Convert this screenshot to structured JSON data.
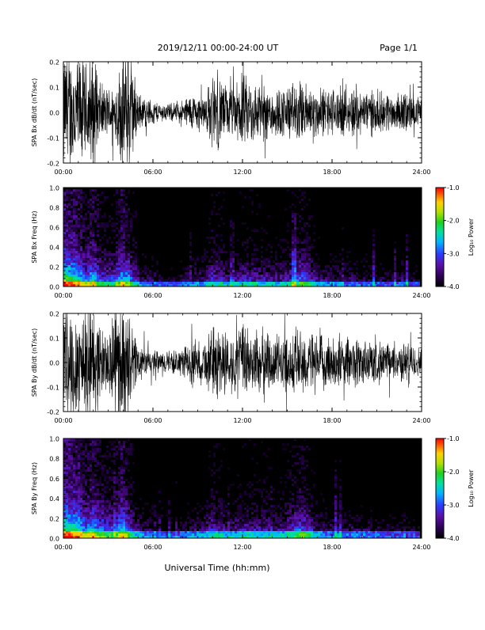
{
  "header": {
    "title": "2019/12/11  00:00-24:00 UT",
    "page": "Page 1/1"
  },
  "footer": {
    "xlabel": "Universal Time (hh:mm)"
  },
  "colorbar_title": "Log₁₀ Power",
  "colorscale": [
    "#000000",
    "#2a0050",
    "#5a10a8",
    "#2c3cff",
    "#00b4ff",
    "#00e0a0",
    "#20d020",
    "#b0e000",
    "#ffd000",
    "#ff6000",
    "#ff0000"
  ],
  "chart_data": [
    {
      "type": "line",
      "ylabel": "SPA Bx dB/dt (nT/sec)",
      "xlim": [
        "00:00",
        "24:00"
      ],
      "ylim": [
        -0.2,
        0.2
      ],
      "xticks": [
        "00:00",
        "06:00",
        "12:00",
        "18:00",
        "24:00"
      ],
      "yticks": [
        "0.2",
        "0.1",
        "0.0",
        "-0.1",
        "-0.2"
      ],
      "series": [
        {
          "x_hours": [
            0,
            0.5,
            1,
            1.5,
            2,
            2.5,
            3,
            3.5,
            4,
            4.5,
            5,
            5.5,
            6,
            6.5,
            7,
            7.5,
            8,
            8.5,
            9,
            9.5,
            10,
            10.5,
            11,
            11.5,
            12,
            12.5,
            13,
            13.5,
            14,
            14.5,
            15,
            15.5,
            16,
            16.5,
            17,
            17.5,
            18,
            18.5,
            19,
            19.5,
            20,
            20.5,
            21,
            21.5,
            22,
            22.5,
            23,
            23.5,
            24
          ],
          "amplitude": [
            0.2,
            0.2,
            0.2,
            0.16,
            0.2,
            0.09,
            0.08,
            0.1,
            0.2,
            0.2,
            0.06,
            0.05,
            0.04,
            0.03,
            0.03,
            0.03,
            0.04,
            0.06,
            0.06,
            0.06,
            0.12,
            0.12,
            0.08,
            0.09,
            0.12,
            0.11,
            0.1,
            0.09,
            0.09,
            0.08,
            0.09,
            0.1,
            0.1,
            0.09,
            0.08,
            0.08,
            0.08,
            0.08,
            0.07,
            0.09,
            0.07,
            0.08,
            0.06,
            0.07,
            0.06,
            0.06,
            0.07,
            0.05,
            0.05
          ]
        }
      ]
    },
    {
      "type": "heatmap",
      "ylabel": "SPA Bx Freq (Hz)",
      "xlim": [
        "00:00",
        "24:00"
      ],
      "ylim": [
        0.0,
        1.0
      ],
      "xticks": [
        "00:00",
        "06:00",
        "12:00",
        "18:00",
        "24:00"
      ],
      "yticks": [
        "1.0",
        "0.8",
        "0.6",
        "0.4",
        "0.2",
        "0.0"
      ],
      "colorbar": {
        "label": "Log₁₀ Power",
        "range": [
          -4.0,
          -1.0
        ],
        "ticks": [
          "-1.0",
          "-2.0",
          "-3.0",
          "-4.0"
        ]
      },
      "activity_hours": [
        0,
        0.5,
        1,
        1.5,
        2,
        2.5,
        3,
        3.5,
        4,
        4.5,
        5,
        5.5,
        6,
        6.5,
        7,
        7.5,
        8,
        8.5,
        9,
        9.5,
        10,
        10.5,
        11,
        11.5,
        12,
        12.5,
        13,
        13.5,
        14,
        14.5,
        15,
        15.5,
        16,
        16.5,
        17,
        17.5,
        18,
        18.5,
        19,
        19.5,
        20,
        20.5,
        21,
        21.5,
        22,
        22.5,
        23,
        23.5,
        24
      ],
      "activity_level": [
        0.9,
        0.8,
        0.75,
        0.55,
        0.7,
        0.5,
        0.45,
        0.5,
        0.7,
        0.55,
        0.35,
        0.3,
        0.28,
        0.25,
        0.22,
        0.22,
        0.25,
        0.3,
        0.32,
        0.32,
        0.45,
        0.42,
        0.35,
        0.35,
        0.4,
        0.42,
        0.4,
        0.38,
        0.38,
        0.36,
        0.4,
        0.45,
        0.55,
        0.48,
        0.36,
        0.32,
        0.3,
        0.3,
        0.28,
        0.3,
        0.27,
        0.28,
        0.25,
        0.26,
        0.24,
        0.24,
        0.25,
        0.22,
        0.22
      ]
    },
    {
      "type": "line",
      "ylabel": "SPA By dB/dt (nT/sec)",
      "xlim": [
        "00:00",
        "24:00"
      ],
      "ylim": [
        -0.2,
        0.2
      ],
      "xticks": [
        "00:00",
        "06:00",
        "12:00",
        "18:00",
        "24:00"
      ],
      "yticks": [
        "0.2",
        "0.1",
        "0.0",
        "-0.1",
        "-0.2"
      ],
      "series": [
        {
          "x_hours": [
            0,
            0.5,
            1,
            1.5,
            2,
            2.5,
            3,
            3.5,
            4,
            4.5,
            5,
            5.5,
            6,
            6.5,
            7,
            7.5,
            8,
            8.5,
            9,
            9.5,
            10,
            10.5,
            11,
            11.5,
            12,
            12.5,
            13,
            13.5,
            14,
            14.5,
            15,
            15.5,
            16,
            16.5,
            17,
            17.5,
            18,
            18.5,
            19,
            19.5,
            20,
            20.5,
            21,
            21.5,
            22,
            22.5,
            23,
            23.5,
            24
          ],
          "amplitude": [
            0.2,
            0.2,
            0.2,
            0.2,
            0.2,
            0.12,
            0.11,
            0.2,
            0.2,
            0.14,
            0.07,
            0.05,
            0.04,
            0.04,
            0.04,
            0.04,
            0.05,
            0.07,
            0.07,
            0.08,
            0.12,
            0.13,
            0.1,
            0.1,
            0.12,
            0.12,
            0.11,
            0.11,
            0.1,
            0.09,
            0.1,
            0.11,
            0.12,
            0.1,
            0.09,
            0.09,
            0.09,
            0.09,
            0.08,
            0.09,
            0.08,
            0.08,
            0.07,
            0.07,
            0.06,
            0.06,
            0.07,
            0.06,
            0.05
          ]
        }
      ]
    },
    {
      "type": "heatmap",
      "ylabel": "SPA By Freq (Hz)",
      "xlim": [
        "00:00",
        "24:00"
      ],
      "ylim": [
        0.0,
        1.0
      ],
      "xticks": [
        "00:00",
        "06:00",
        "12:00",
        "18:00",
        "24:00"
      ],
      "yticks": [
        "1.0",
        "0.8",
        "0.6",
        "0.4",
        "0.2",
        "0.0"
      ],
      "colorbar": {
        "label": "Log₁₀ Power",
        "range": [
          -4.0,
          -1.0
        ],
        "ticks": [
          "-1.0",
          "-2.0",
          "-3.0",
          "-4.0"
        ]
      },
      "activity_hours": [
        0,
        0.5,
        1,
        1.5,
        2,
        2.5,
        3,
        3.5,
        4,
        4.5,
        5,
        5.5,
        6,
        6.5,
        7,
        7.5,
        8,
        8.5,
        9,
        9.5,
        10,
        10.5,
        11,
        11.5,
        12,
        12.5,
        13,
        13.5,
        14,
        14.5,
        15,
        15.5,
        16,
        16.5,
        17,
        17.5,
        18,
        18.5,
        19,
        19.5,
        20,
        20.5,
        21,
        21.5,
        22,
        22.5,
        23,
        23.5,
        24
      ],
      "activity_level": [
        0.9,
        0.85,
        0.8,
        0.6,
        0.72,
        0.55,
        0.5,
        0.55,
        0.72,
        0.5,
        0.35,
        0.3,
        0.28,
        0.25,
        0.22,
        0.22,
        0.25,
        0.3,
        0.32,
        0.34,
        0.45,
        0.42,
        0.36,
        0.36,
        0.4,
        0.42,
        0.4,
        0.4,
        0.38,
        0.36,
        0.42,
        0.48,
        0.55,
        0.48,
        0.36,
        0.32,
        0.3,
        0.3,
        0.28,
        0.3,
        0.27,
        0.28,
        0.25,
        0.26,
        0.24,
        0.24,
        0.25,
        0.22,
        0.22
      ]
    }
  ]
}
